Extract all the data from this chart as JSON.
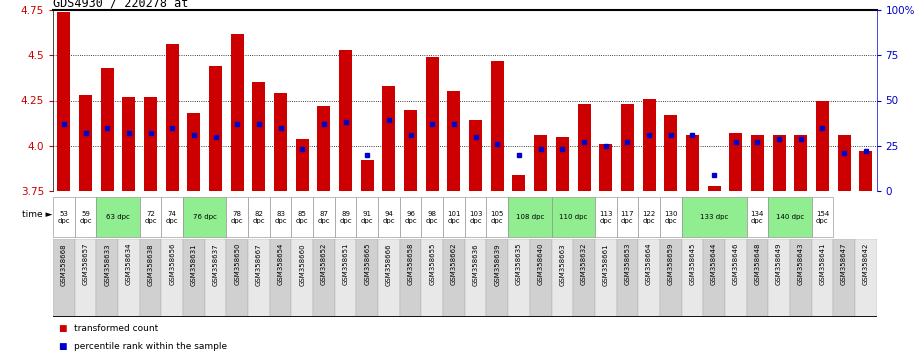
{
  "title": "GDS4930 / 220278_at",
  "gsm_labels": [
    "GSM358668",
    "GSM358657",
    "GSM358633",
    "GSM358634",
    "GSM358638",
    "GSM358656",
    "GSM358631",
    "GSM358637",
    "GSM358650",
    "GSM358667",
    "GSM358654",
    "GSM358660",
    "GSM358652",
    "GSM358651",
    "GSM358665",
    "GSM358666",
    "GSM358658",
    "GSM358655",
    "GSM358662",
    "GSM358636",
    "GSM358639",
    "GSM358635",
    "GSM358640",
    "GSM358663",
    "GSM358632",
    "GSM358661",
    "GSM358653",
    "GSM358664",
    "GSM358659",
    "GSM358645",
    "GSM358644",
    "GSM358646",
    "GSM358648",
    "GSM358649",
    "GSM358643",
    "GSM358641",
    "GSM358647",
    "GSM358642"
  ],
  "bar_values": [
    4.74,
    4.28,
    4.43,
    4.27,
    4.27,
    4.56,
    4.18,
    4.44,
    4.62,
    4.35,
    4.29,
    4.04,
    4.22,
    4.53,
    3.92,
    4.33,
    4.2,
    4.49,
    4.3,
    4.14,
    4.47,
    3.84,
    4.06,
    4.05,
    4.23,
    4.01,
    4.23,
    4.26,
    4.17,
    4.06,
    3.78,
    4.07,
    4.06,
    4.06,
    4.06,
    4.25,
    4.06,
    3.97
  ],
  "percentile_values": [
    4.12,
    4.07,
    4.1,
    4.07,
    4.07,
    4.1,
    4.06,
    4.05,
    4.12,
    4.12,
    4.1,
    3.98,
    4.12,
    4.13,
    3.95,
    4.14,
    4.06,
    4.12,
    4.12,
    4.05,
    4.01,
    3.95,
    3.98,
    3.98,
    4.02,
    4.0,
    4.02,
    4.06,
    4.06,
    4.06,
    3.84,
    4.02,
    4.02,
    4.04,
    4.04,
    4.1,
    3.96,
    3.97
  ],
  "time_groups": [
    {
      "label": "53\ndpc",
      "col": 0,
      "span": 1,
      "bg": "#ffffff"
    },
    {
      "label": "59\ndpc",
      "col": 1,
      "span": 1,
      "bg": "#ffffff"
    },
    {
      "label": "63 dpc",
      "col": 2,
      "span": 2,
      "bg": "#90ee90"
    },
    {
      "label": "72\ndpc",
      "col": 4,
      "span": 1,
      "bg": "#ffffff"
    },
    {
      "label": "74\ndpc",
      "col": 5,
      "span": 1,
      "bg": "#ffffff"
    },
    {
      "label": "76 dpc",
      "col": 6,
      "span": 2,
      "bg": "#90ee90"
    },
    {
      "label": "78\ndpc",
      "col": 8,
      "span": 1,
      "bg": "#ffffff"
    },
    {
      "label": "82\ndpc",
      "col": 9,
      "span": 1,
      "bg": "#ffffff"
    },
    {
      "label": "83\ndpc",
      "col": 10,
      "span": 1,
      "bg": "#ffffff"
    },
    {
      "label": "85\ndpc",
      "col": 11,
      "span": 1,
      "bg": "#ffffff"
    },
    {
      "label": "87\ndpc",
      "col": 12,
      "span": 1,
      "bg": "#ffffff"
    },
    {
      "label": "89\ndpc",
      "col": 13,
      "span": 1,
      "bg": "#ffffff"
    },
    {
      "label": "91\ndpc",
      "col": 14,
      "span": 1,
      "bg": "#ffffff"
    },
    {
      "label": "94\ndpc",
      "col": 15,
      "span": 1,
      "bg": "#ffffff"
    },
    {
      "label": "96\ndpc",
      "col": 16,
      "span": 1,
      "bg": "#ffffff"
    },
    {
      "label": "98\ndpc",
      "col": 17,
      "span": 1,
      "bg": "#ffffff"
    },
    {
      "label": "101\ndpc",
      "col": 18,
      "span": 1,
      "bg": "#ffffff"
    },
    {
      "label": "103\ndpc",
      "col": 19,
      "span": 1,
      "bg": "#ffffff"
    },
    {
      "label": "105\ndpc",
      "col": 20,
      "span": 1,
      "bg": "#ffffff"
    },
    {
      "label": "108 dpc",
      "col": 21,
      "span": 2,
      "bg": "#90ee90"
    },
    {
      "label": "110 dpc",
      "col": 23,
      "span": 2,
      "bg": "#90ee90"
    },
    {
      "label": "113\ndpc",
      "col": 25,
      "span": 1,
      "bg": "#ffffff"
    },
    {
      "label": "117\ndpc",
      "col": 26,
      "span": 1,
      "bg": "#ffffff"
    },
    {
      "label": "122\ndpc",
      "col": 27,
      "span": 1,
      "bg": "#ffffff"
    },
    {
      "label": "130\ndpc",
      "col": 28,
      "span": 1,
      "bg": "#ffffff"
    },
    {
      "label": "133 dpc",
      "col": 29,
      "span": 3,
      "bg": "#90ee90"
    },
    {
      "label": "134\ndpc",
      "col": 32,
      "span": 1,
      "bg": "#ffffff"
    },
    {
      "label": "140 dpc",
      "col": 33,
      "span": 2,
      "bg": "#90ee90"
    },
    {
      "label": "154\ndpc",
      "col": 35,
      "span": 1,
      "bg": "#ffffff"
    }
  ],
  "ylim": [
    3.75,
    4.75
  ],
  "yticks": [
    3.75,
    4.0,
    4.25,
    4.5,
    4.75
  ],
  "bar_color": "#cc0000",
  "dot_color": "#0000cc",
  "axis_label_color_left": "#cc0000",
  "axis_label_color_right": "#0000cc",
  "right_yticks": [
    0,
    25,
    50,
    75,
    100
  ],
  "right_yticklabels": [
    "0",
    "25",
    "50",
    "75",
    "100%"
  ]
}
